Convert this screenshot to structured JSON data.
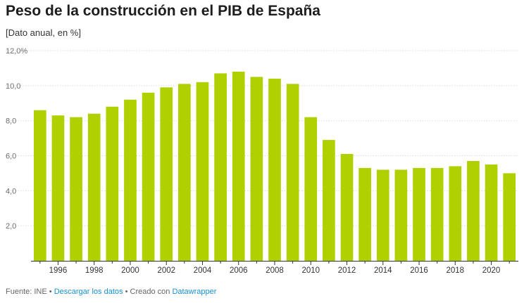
{
  "header": {
    "title": "Peso de la construcción en el PIB de España",
    "subtitle": "[Dato anual, en %]"
  },
  "footer": {
    "source": "Fuente: INE",
    "separator": "•",
    "download_link": "Descargar los datos",
    "created_with": "Creado con",
    "tool_link": "Datawrapper"
  },
  "colors": {
    "bar": "#b0d000",
    "grid": "#dcdcdc",
    "axis": "#333333",
    "link": "#1a8fcf"
  },
  "chart_data": {
    "type": "bar",
    "title": "Peso de la construcción en el PIB de España",
    "subtitle": "[Dato anual, en %]",
    "xlabel": "",
    "ylabel": "",
    "ylim": [
      0,
      12
    ],
    "yticks": [
      2,
      4,
      6,
      8,
      10,
      12
    ],
    "ytick_labels": [
      "2,0",
      "4,0",
      "6,0",
      "8,0",
      "10,0",
      "12,0%"
    ],
    "grid": true,
    "categories": [
      1995,
      1996,
      1997,
      1998,
      1999,
      2000,
      2001,
      2002,
      2003,
      2004,
      2005,
      2006,
      2007,
      2008,
      2009,
      2010,
      2011,
      2012,
      2013,
      2014,
      2015,
      2016,
      2017,
      2018,
      2019,
      2020,
      2021
    ],
    "values": [
      8.6,
      8.3,
      8.2,
      8.4,
      8.8,
      9.2,
      9.6,
      9.9,
      10.1,
      10.2,
      10.7,
      10.8,
      10.5,
      10.4,
      10.1,
      8.2,
      6.9,
      6.1,
      5.3,
      5.2,
      5.2,
      5.3,
      5.3,
      5.4,
      5.7,
      5.5,
      5.0
    ],
    "xtick_labels": [
      "1996",
      "1998",
      "2000",
      "2002",
      "2004",
      "2006",
      "2008",
      "2010",
      "2012",
      "2014",
      "2016",
      "2018",
      "2020"
    ]
  }
}
